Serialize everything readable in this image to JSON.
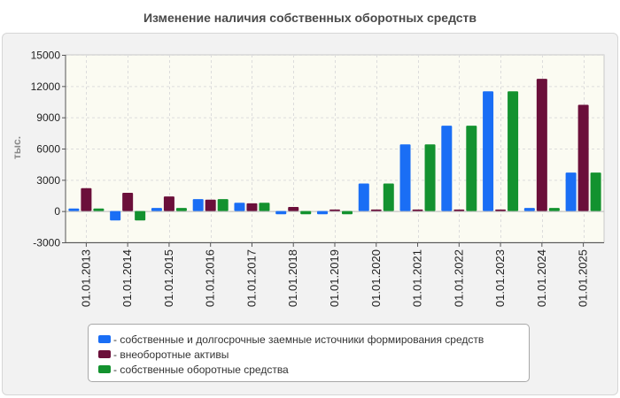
{
  "chart_data": {
    "type": "bar",
    "title": "Изменение наличия собственных оборотных средств",
    "xlabel": "",
    "ylabel": "тыс.",
    "ylim": [
      -3000,
      15000
    ],
    "yticks": [
      -3000,
      0,
      3000,
      6000,
      9000,
      12000,
      15000
    ],
    "grid": true,
    "legend_position": "bottom",
    "categories": [
      "01.01.2013",
      "01.01.2014",
      "01.01.2015",
      "01.01.2016",
      "01.01.2017",
      "01.01.2018",
      "01.01.2019",
      "01.01.2020",
      "01.01.2021",
      "01.01.2022",
      "01.01.2023",
      "01.01.2024",
      "01.01.2025"
    ],
    "series": [
      {
        "name": "- собственные и долгосрочные заемные источники формирования средств",
        "color": "#1a6ef5",
        "values": [
          250,
          -900,
          300,
          1150,
          800,
          -300,
          -300,
          2650,
          6400,
          8200,
          11500,
          300,
          3700
        ]
      },
      {
        "name": "- внеоборотные активы",
        "color": "#6b0f3a",
        "values": [
          2200,
          1750,
          1400,
          1100,
          750,
          400,
          150,
          150,
          150,
          150,
          150,
          12700,
          10200
        ]
      },
      {
        "name": "- собственные оборотные средства",
        "color": "#13922f",
        "values": [
          250,
          -900,
          300,
          1150,
          800,
          -300,
          -300,
          2650,
          6400,
          8200,
          11500,
          300,
          3700
        ]
      }
    ]
  }
}
